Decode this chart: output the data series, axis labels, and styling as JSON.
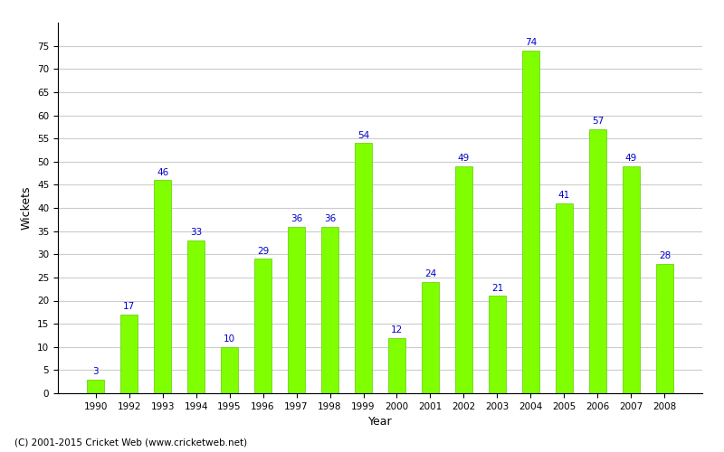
{
  "years": [
    "1990",
    "1992",
    "1993",
    "1994",
    "1995",
    "1996",
    "1997",
    "1998",
    "1999",
    "2000",
    "2001",
    "2002",
    "2003",
    "2004",
    "2005",
    "2006",
    "2007",
    "2008"
  ],
  "wickets": [
    3,
    17,
    46,
    33,
    10,
    29,
    36,
    36,
    54,
    12,
    24,
    49,
    21,
    74,
    41,
    57,
    49,
    28
  ],
  "bar_color": "#7fff00",
  "bar_edge_color": "#5dcc00",
  "label_color": "#0000cc",
  "title": "",
  "xlabel": "Year",
  "ylabel": "Wickets",
  "ylim": [
    0,
    80
  ],
  "yticks": [
    0,
    5,
    10,
    15,
    20,
    25,
    30,
    35,
    40,
    45,
    50,
    55,
    60,
    65,
    70,
    75
  ],
  "background_color": "#ffffff",
  "grid_color": "#cccccc",
  "label_fontsize": 7.5,
  "axis_label_fontsize": 9,
  "tick_fontsize": 7.5,
  "footer_text": "(C) 2001-2015 Cricket Web (www.cricketweb.net)",
  "footer_fontsize": 7.5,
  "bar_width": 0.5
}
